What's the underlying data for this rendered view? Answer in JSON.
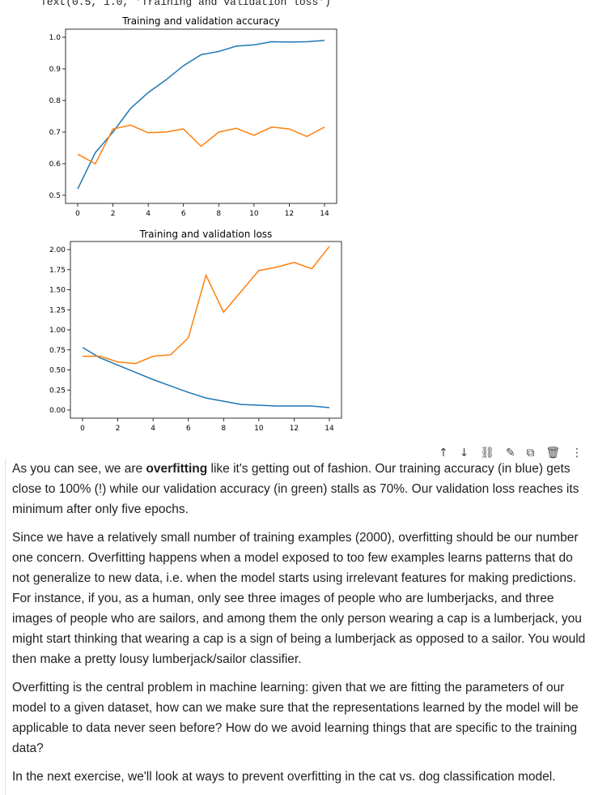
{
  "output_text": "Text(0.5, 1.0, 'Training and validation loss')",
  "chart_data": [
    {
      "type": "line",
      "title": "Training and validation accuracy",
      "x": [
        0,
        1,
        2,
        3,
        4,
        5,
        6,
        7,
        8,
        9,
        10,
        11,
        12,
        13,
        14
      ],
      "xticks": [
        "0",
        "2",
        "4",
        "6",
        "8",
        "10",
        "12",
        "14"
      ],
      "yticks": [
        "0.5",
        "0.6",
        "0.7",
        "0.8",
        "0.9",
        "1.0"
      ],
      "ylim": [
        0.5,
        1.0
      ],
      "series": [
        {
          "color": "#1f77b4",
          "values": [
            0.52,
            0.635,
            0.7,
            0.775,
            0.825,
            0.865,
            0.91,
            0.945,
            0.955,
            0.972,
            0.976,
            0.986,
            0.985,
            0.986,
            0.99
          ]
        },
        {
          "color": "#ff7f0e",
          "values": [
            0.63,
            0.6,
            0.71,
            0.722,
            0.698,
            0.7,
            0.71,
            0.655,
            0.7,
            0.712,
            0.69,
            0.716,
            0.71,
            0.686,
            0.716
          ]
        }
      ]
    },
    {
      "type": "line",
      "title": "Training and validation loss",
      "x": [
        0,
        1,
        2,
        3,
        4,
        5,
        6,
        7,
        8,
        9,
        10,
        11,
        12,
        13,
        14
      ],
      "xticks": [
        "0",
        "2",
        "4",
        "6",
        "8",
        "10",
        "12",
        "14"
      ],
      "yticks": [
        "0.00",
        "0.25",
        "0.50",
        "0.75",
        "1.00",
        "1.25",
        "1.50",
        "1.75",
        "2.00"
      ],
      "ylim": [
        0,
        2.0
      ],
      "series": [
        {
          "color": "#1f77b4",
          "values": [
            0.78,
            0.65,
            0.56,
            0.47,
            0.38,
            0.3,
            0.22,
            0.15,
            0.11,
            0.07,
            0.06,
            0.05,
            0.05,
            0.05,
            0.03
          ]
        },
        {
          "color": "#ff7f0e",
          "values": [
            0.67,
            0.67,
            0.6,
            0.58,
            0.67,
            0.69,
            0.9,
            1.68,
            1.22,
            1.48,
            1.74,
            1.78,
            1.84,
            1.76,
            2.04
          ]
        }
      ]
    }
  ],
  "toolbar": {
    "move_up": "↑",
    "move_down": "↓",
    "link": "⛓",
    "edit": "✎",
    "mirror": "⧉",
    "delete": "🗑",
    "more": "⋮"
  },
  "text_cell": {
    "p1_pre": "As you can see, we are ",
    "p1_bold": "overfitting",
    "p1_post": " like it's getting out of fashion. Our training accuracy (in blue) gets close to 100% (!) while our validation accuracy (in green) stalls as 70%. Our validation loss reaches its minimum after only five epochs.",
    "p2": "Since we have a relatively small number of training examples (2000), overfitting should be our number one concern. Overfitting happens when a model exposed to too few examples learns patterns that do not generalize to new data, i.e. when the model starts using irrelevant features for making predictions. For instance, if you, as a human, only see three images of people who are lumberjacks, and three images of people who are sailors, and among them the only person wearing a cap is a lumberjack, you might start thinking that wearing a cap is a sign of being a lumberjack as opposed to a sailor. You would then make a pretty lousy lumberjack/sailor classifier.",
    "p3": "Overfitting is the central problem in machine learning: given that we are fitting the parameters of our model to a given dataset, how can we make sure that the representations learned by the model will be applicable to data never seen before? How do we avoid learning things that are specific to the training data?",
    "p4": "In the next exercise, we'll look at ways to prevent overfitting in the cat vs. dog classification model."
  }
}
